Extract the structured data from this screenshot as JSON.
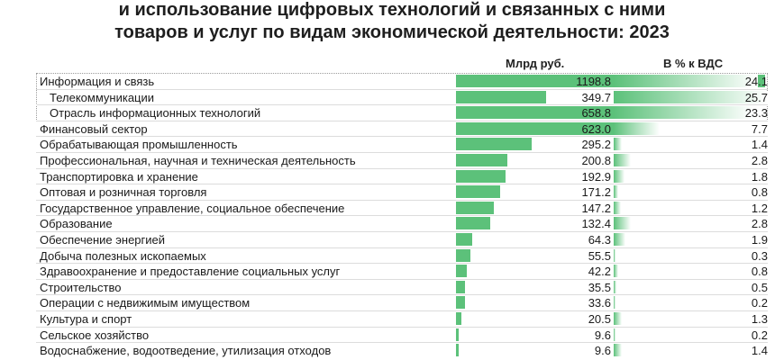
{
  "chart_data": {
    "type": "bar",
    "title": [
      "и использование цифровых технологий и связанных с ними",
      "товаров и услуг по видам экономической деятельности: 2023"
    ],
    "columns": [
      "Млрд  руб.",
      "В % к ВДС"
    ],
    "categories": [
      "Информация и связь",
      "Телекоммуникации",
      "Отрасль информационных технологий",
      "Финансовый сектор",
      "Обрабатывающая промышленность",
      "Профессиональная, научная и техническая деятельность",
      "Транспортировка и хранение",
      "Оптовая и розничная торговля",
      "Государственное управление, социальное обеспечение",
      "Образование",
      "Обеспечение энергией",
      "Добыча полезных ископаемых",
      "Здравоохранение и предоставление социальных услуг",
      "Строительство",
      "Операции с недвижимым имуществом",
      "Культура и спорт",
      "Сельское хозяйство",
      "Водоснабжение, водоотведение, утилизация отходов"
    ],
    "indent": [
      0,
      1,
      1,
      0,
      0,
      0,
      0,
      0,
      0,
      0,
      0,
      0,
      0,
      0,
      0,
      0,
      0,
      0
    ],
    "series": [
      {
        "values": [
          1198.8,
          349.7,
          658.8,
          623.0,
          295.2,
          200.8,
          192.9,
          171.2,
          147.2,
          132.4,
          64.3,
          55.5,
          42.2,
          35.5,
          33.6,
          20.5,
          9.6,
          9.6
        ],
        "labels": [
          "1198.8",
          "349.7",
          "658.8",
          "623.0",
          "295.2",
          "200.8",
          "192.9",
          "171.2",
          "147.2",
          "132.4",
          "64.3",
          "55.5",
          "42.2",
          "35.5",
          "33.6",
          "20.5",
          "9.6",
          "9.6"
        ],
        "xlim": [
          0,
          1198.8
        ]
      },
      {
        "values": [
          24.1,
          25.7,
          23.3,
          7.7,
          1.4,
          2.8,
          1.8,
          0.8,
          1.2,
          2.8,
          1.9,
          0.3,
          0.8,
          0.5,
          0.2,
          1.3,
          0.2,
          1.4
        ],
        "labels": [
          "24.1",
          "25.7",
          "23.3",
          "7.7",
          "1.4",
          "2.8",
          "1.8",
          "0.8",
          "1.2",
          "2.8",
          "1.9",
          "0.3",
          "0.8",
          "0.5",
          "0.2",
          "1.3",
          "0.2",
          "1.4"
        ],
        "xlim": [
          0,
          25.7
        ]
      }
    ],
    "colors": {
      "bar": "#5cc17a",
      "gradient_start": "#5cc17a",
      "gradient_end": "#ffffff"
    }
  }
}
